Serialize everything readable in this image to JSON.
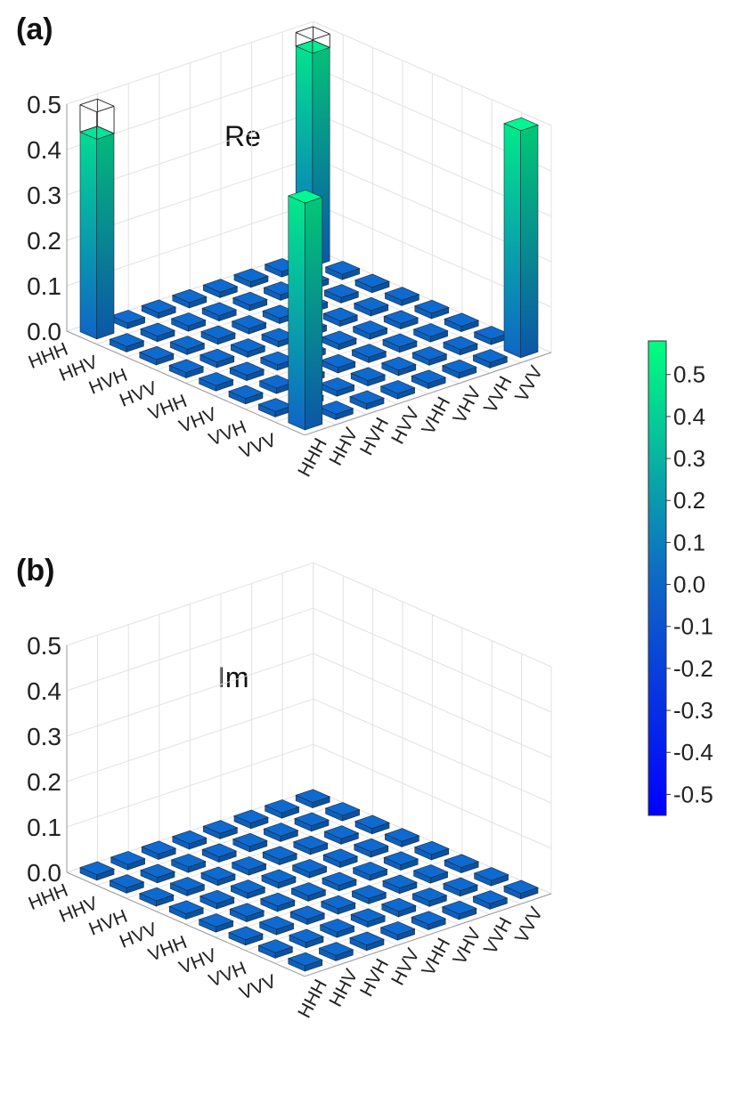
{
  "chart_data": [
    {
      "type": "bar3d",
      "panel_label": "(a)",
      "part": "Re",
      "basis": [
        "HHH",
        "HHV",
        "HVH",
        "HVV",
        "VHH",
        "VHV",
        "VVH",
        "VVV"
      ],
      "zlim": [
        0,
        0.5
      ],
      "zticks": [
        "0.0",
        "0.1",
        "0.2",
        "0.3",
        "0.4",
        "0.5"
      ],
      "values": [
        [
          0.44,
          0,
          0,
          0,
          0,
          0,
          0,
          0.47
        ],
        [
          0,
          0,
          0,
          0,
          0,
          0,
          0,
          0
        ],
        [
          0,
          0,
          0,
          0,
          0,
          0,
          0,
          0
        ],
        [
          0,
          0,
          0,
          0,
          0,
          0,
          0,
          0
        ],
        [
          0,
          0,
          0,
          0,
          0,
          0,
          0,
          0
        ],
        [
          0,
          0,
          0,
          0,
          0,
          0,
          0,
          0
        ],
        [
          0,
          0,
          0,
          0,
          0,
          0,
          0,
          0
        ],
        [
          0.5,
          0,
          0,
          0,
          0,
          0,
          0,
          0.5
        ]
      ],
      "ideal_values": [
        [
          0.5,
          0,
          0,
          0,
          0,
          0,
          0,
          0.5
        ],
        [
          0,
          0,
          0,
          0,
          0,
          0,
          0,
          0
        ],
        [
          0,
          0,
          0,
          0,
          0,
          0,
          0,
          0
        ],
        [
          0,
          0,
          0,
          0,
          0,
          0,
          0,
          0
        ],
        [
          0,
          0,
          0,
          0,
          0,
          0,
          0,
          0
        ],
        [
          0,
          0,
          0,
          0,
          0,
          0,
          0,
          0
        ],
        [
          0,
          0,
          0,
          0,
          0,
          0,
          0,
          0
        ],
        [
          0.5,
          0,
          0,
          0,
          0,
          0,
          0,
          0.5
        ]
      ]
    },
    {
      "type": "bar3d",
      "panel_label": "(b)",
      "part": "Im",
      "basis": [
        "HHH",
        "HHV",
        "HVH",
        "HVV",
        "VHH",
        "VHV",
        "VVH",
        "VVV"
      ],
      "zlim": [
        0,
        0.5
      ],
      "zticks": [
        "0.0",
        "0.1",
        "0.2",
        "0.3",
        "0.4",
        "0.5"
      ],
      "values": [
        [
          0,
          0,
          0,
          0,
          0,
          0,
          0,
          0
        ],
        [
          0,
          0,
          0,
          0,
          0,
          0,
          0,
          0
        ],
        [
          0,
          0,
          0,
          0,
          0,
          0,
          0,
          0
        ],
        [
          0,
          0,
          0,
          0,
          0,
          0,
          0,
          0
        ],
        [
          0,
          0,
          0,
          0,
          0,
          0,
          0,
          0
        ],
        [
          0,
          0,
          0,
          0,
          0,
          0,
          0,
          0
        ],
        [
          0,
          0,
          0,
          0,
          0,
          0,
          0,
          0
        ],
        [
          0,
          0,
          0,
          0,
          0,
          0,
          0,
          0
        ]
      ]
    }
  ],
  "colorbar": {
    "range": [
      -0.55,
      0.58
    ],
    "ticks": [
      "0.5",
      "0.4",
      "0.3",
      "0.2",
      "0.1",
      "0.0",
      "-0.1",
      "-0.2",
      "-0.3",
      "-0.4",
      "-0.5"
    ],
    "colors": {
      "low": "#0000ff",
      "mid": "#0e68c4",
      "high": "#00ff80"
    }
  }
}
